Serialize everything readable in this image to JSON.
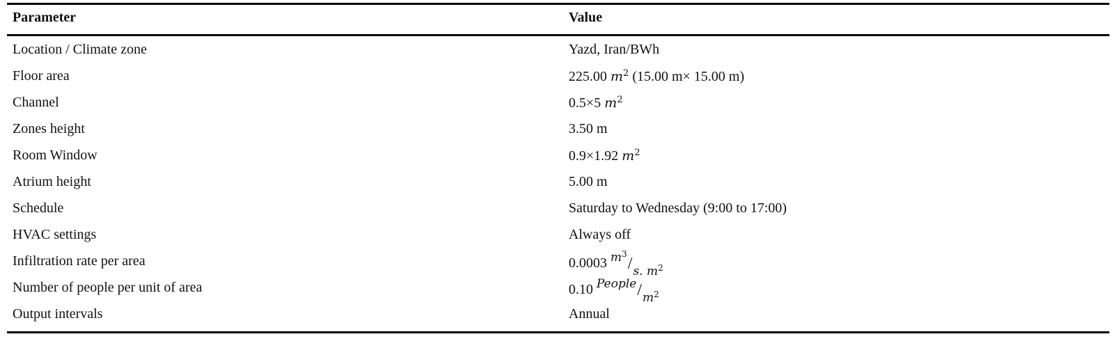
{
  "table": {
    "headers": {
      "parameter": "Parameter",
      "value": "Value"
    },
    "rows": [
      {
        "parameter": "Location / Climate zone",
        "value": "Yazd, Iran/BWh"
      },
      {
        "parameter": "Floor area",
        "value_prefix": "225.00 ",
        "unit": "m",
        "unit_exp": "2",
        "value_suffix": " (15.00 m× 15.00 m)"
      },
      {
        "parameter": "Channel",
        "value_prefix": "0.5×5 ",
        "unit": "m",
        "unit_exp": "2"
      },
      {
        "parameter": "Zones height",
        "value": "3.50 m"
      },
      {
        "parameter": "Room Window",
        "value_prefix": "0.9×1.92 ",
        "unit": "m",
        "unit_exp": "2"
      },
      {
        "parameter": "Atrium height",
        "value": "5.00 m"
      },
      {
        "parameter": "Schedule",
        "value": "Saturday to Wednesday (9:00 to 17:00)"
      },
      {
        "parameter": "HVAC settings",
        "value": "Always off"
      },
      {
        "parameter": "Infiltration rate per area",
        "value_prefix": "0.0003 ",
        "num": "m",
        "num_exp": "3",
        "den": "s. m",
        "den_exp": "2"
      },
      {
        "parameter": "Number of people per unit of area",
        "value_prefix": "0.10 ",
        "num": "People",
        "den": "m",
        "den_exp": "2"
      },
      {
        "parameter": "Output intervals",
        "value": "Annual"
      }
    ]
  }
}
